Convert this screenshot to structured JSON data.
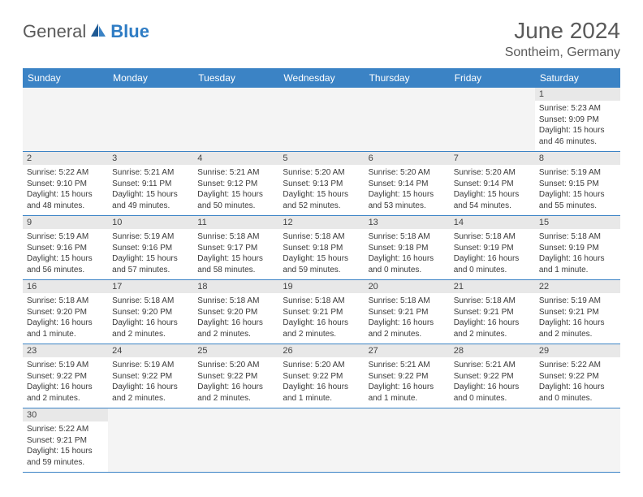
{
  "logo": {
    "text1": "General",
    "text2": "Blue"
  },
  "title": "June 2024",
  "location": "Sontheim, Germany",
  "dayHeaders": [
    "Sunday",
    "Monday",
    "Tuesday",
    "Wednesday",
    "Thursday",
    "Friday",
    "Saturday"
  ],
  "colors": {
    "headerBlue": "#3b83c5",
    "logoBlue": "#2e7cc4",
    "grayText": "#5a5a5a",
    "dayNumBg": "#e8e8e8",
    "emptyBg": "#f4f4f4"
  },
  "weeks": [
    [
      null,
      null,
      null,
      null,
      null,
      null,
      {
        "n": "1",
        "sr": "5:23 AM",
        "ss": "9:09 PM",
        "d1": "15 hours",
        "d2": "and 46 minutes."
      }
    ],
    [
      {
        "n": "2",
        "sr": "5:22 AM",
        "ss": "9:10 PM",
        "d1": "15 hours",
        "d2": "and 48 minutes."
      },
      {
        "n": "3",
        "sr": "5:21 AM",
        "ss": "9:11 PM",
        "d1": "15 hours",
        "d2": "and 49 minutes."
      },
      {
        "n": "4",
        "sr": "5:21 AM",
        "ss": "9:12 PM",
        "d1": "15 hours",
        "d2": "and 50 minutes."
      },
      {
        "n": "5",
        "sr": "5:20 AM",
        "ss": "9:13 PM",
        "d1": "15 hours",
        "d2": "and 52 minutes."
      },
      {
        "n": "6",
        "sr": "5:20 AM",
        "ss": "9:14 PM",
        "d1": "15 hours",
        "d2": "and 53 minutes."
      },
      {
        "n": "7",
        "sr": "5:20 AM",
        "ss": "9:14 PM",
        "d1": "15 hours",
        "d2": "and 54 minutes."
      },
      {
        "n": "8",
        "sr": "5:19 AM",
        "ss": "9:15 PM",
        "d1": "15 hours",
        "d2": "and 55 minutes."
      }
    ],
    [
      {
        "n": "9",
        "sr": "5:19 AM",
        "ss": "9:16 PM",
        "d1": "15 hours",
        "d2": "and 56 minutes."
      },
      {
        "n": "10",
        "sr": "5:19 AM",
        "ss": "9:16 PM",
        "d1": "15 hours",
        "d2": "and 57 minutes."
      },
      {
        "n": "11",
        "sr": "5:18 AM",
        "ss": "9:17 PM",
        "d1": "15 hours",
        "d2": "and 58 minutes."
      },
      {
        "n": "12",
        "sr": "5:18 AM",
        "ss": "9:18 PM",
        "d1": "15 hours",
        "d2": "and 59 minutes."
      },
      {
        "n": "13",
        "sr": "5:18 AM",
        "ss": "9:18 PM",
        "d1": "16 hours",
        "d2": "and 0 minutes."
      },
      {
        "n": "14",
        "sr": "5:18 AM",
        "ss": "9:19 PM",
        "d1": "16 hours",
        "d2": "and 0 minutes."
      },
      {
        "n": "15",
        "sr": "5:18 AM",
        "ss": "9:19 PM",
        "d1": "16 hours",
        "d2": "and 1 minute."
      }
    ],
    [
      {
        "n": "16",
        "sr": "5:18 AM",
        "ss": "9:20 PM",
        "d1": "16 hours",
        "d2": "and 1 minute."
      },
      {
        "n": "17",
        "sr": "5:18 AM",
        "ss": "9:20 PM",
        "d1": "16 hours",
        "d2": "and 2 minutes."
      },
      {
        "n": "18",
        "sr": "5:18 AM",
        "ss": "9:20 PM",
        "d1": "16 hours",
        "d2": "and 2 minutes."
      },
      {
        "n": "19",
        "sr": "5:18 AM",
        "ss": "9:21 PM",
        "d1": "16 hours",
        "d2": "and 2 minutes."
      },
      {
        "n": "20",
        "sr": "5:18 AM",
        "ss": "9:21 PM",
        "d1": "16 hours",
        "d2": "and 2 minutes."
      },
      {
        "n": "21",
        "sr": "5:18 AM",
        "ss": "9:21 PM",
        "d1": "16 hours",
        "d2": "and 2 minutes."
      },
      {
        "n": "22",
        "sr": "5:19 AM",
        "ss": "9:21 PM",
        "d1": "16 hours",
        "d2": "and 2 minutes."
      }
    ],
    [
      {
        "n": "23",
        "sr": "5:19 AM",
        "ss": "9:22 PM",
        "d1": "16 hours",
        "d2": "and 2 minutes."
      },
      {
        "n": "24",
        "sr": "5:19 AM",
        "ss": "9:22 PM",
        "d1": "16 hours",
        "d2": "and 2 minutes."
      },
      {
        "n": "25",
        "sr": "5:20 AM",
        "ss": "9:22 PM",
        "d1": "16 hours",
        "d2": "and 2 minutes."
      },
      {
        "n": "26",
        "sr": "5:20 AM",
        "ss": "9:22 PM",
        "d1": "16 hours",
        "d2": "and 1 minute."
      },
      {
        "n": "27",
        "sr": "5:21 AM",
        "ss": "9:22 PM",
        "d1": "16 hours",
        "d2": "and 1 minute."
      },
      {
        "n": "28",
        "sr": "5:21 AM",
        "ss": "9:22 PM",
        "d1": "16 hours",
        "d2": "and 0 minutes."
      },
      {
        "n": "29",
        "sr": "5:22 AM",
        "ss": "9:22 PM",
        "d1": "16 hours",
        "d2": "and 0 minutes."
      }
    ],
    [
      {
        "n": "30",
        "sr": "5:22 AM",
        "ss": "9:21 PM",
        "d1": "15 hours",
        "d2": "and 59 minutes."
      },
      null,
      null,
      null,
      null,
      null,
      null
    ]
  ]
}
